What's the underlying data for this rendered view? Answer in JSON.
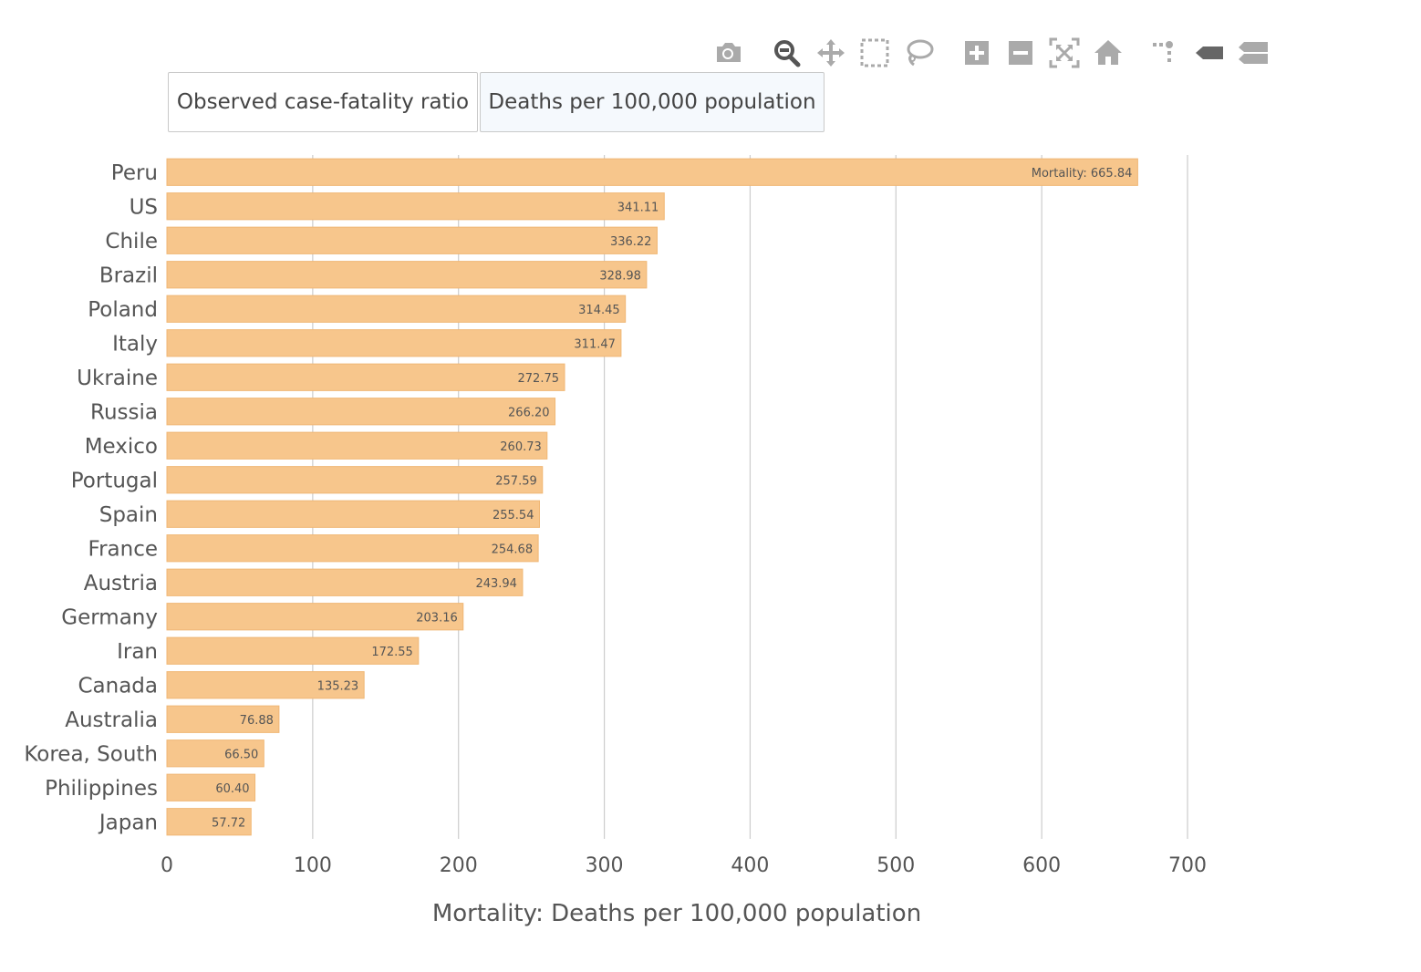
{
  "toolbar": {
    "buttons": [
      "camera-icon",
      "zoom-icon",
      "pan-icon",
      "box-select-icon",
      "lasso-select-icon",
      "zoom-in-icon",
      "zoom-out-icon",
      "autoscale-icon",
      "reset-axes-icon",
      "spike-lines-icon",
      "hover-closest-icon",
      "hover-compare-icon"
    ]
  },
  "toggle": {
    "options": [
      "Observed case-fatality ratio",
      "Deaths per 100,000 population"
    ],
    "selected": "Deaths per 100,000 population"
  },
  "colors": {
    "bar": "#f7c68c",
    "bar_border": "#f0b775",
    "grid": "#cccccc",
    "text": "#555555"
  },
  "chart_data": {
    "type": "bar",
    "orientation": "horizontal",
    "categories": [
      "Peru",
      "US",
      "Chile",
      "Brazil",
      "Poland",
      "Italy",
      "Ukraine",
      "Russia",
      "Mexico",
      "Portugal",
      "Spain",
      "France",
      "Austria",
      "Germany",
      "Iran",
      "Canada",
      "Australia",
      "Korea, South",
      "Philippines",
      "Japan"
    ],
    "values": [
      665.84,
      341.11,
      336.22,
      328.98,
      314.45,
      311.47,
      272.75,
      266.2,
      260.73,
      257.59,
      255.54,
      254.68,
      243.94,
      203.16,
      172.55,
      135.23,
      76.88,
      66.5,
      60.4,
      57.72
    ],
    "value_labels": [
      "Mortality: 665.84",
      "341.11",
      "336.22",
      "328.98",
      "314.45",
      "311.47",
      "272.75",
      "266.20",
      "260.73",
      "257.59",
      "255.54",
      "254.68",
      "243.94",
      "203.16",
      "172.55",
      "135.23",
      "76.88",
      "66.50",
      "60.40",
      "57.72"
    ],
    "xlabel": "Mortality: Deaths per 100,000 population",
    "xlim": [
      0,
      700
    ],
    "xticks": [
      0,
      100,
      200,
      300,
      400,
      500,
      600,
      700
    ],
    "grid": true
  }
}
